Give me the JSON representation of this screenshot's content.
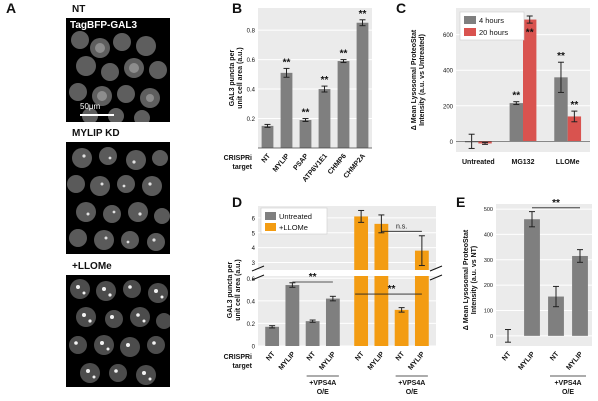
{
  "panel_labels": {
    "a": "A",
    "b": "B",
    "c": "C",
    "d": "D",
    "e": "E"
  },
  "panel_a": {
    "images": [
      {
        "label": "NT",
        "caption": "TagBFP-GAL3",
        "scale_bar": "50μm"
      },
      {
        "label": "MYLIP KD"
      },
      {
        "label": "+LLOMe"
      }
    ]
  },
  "colors": {
    "gray": "#7f7f7f",
    "red": "#d9534f",
    "orange": "#f39c12",
    "panel_bg": "#ebebeb"
  },
  "chart_data": [
    {
      "id": "B",
      "type": "bar",
      "ylabel": "GAL3 puncta per unit cell area (a.u.)",
      "row_label": "CRISPRi target",
      "categories": [
        "NT",
        "MYLIP",
        "PSAP",
        "ATP6V1E1",
        "CHMP6",
        "CHMP2A"
      ],
      "values": [
        0.15,
        0.51,
        0.19,
        0.4,
        0.59,
        0.85
      ],
      "errors": [
        0.01,
        0.03,
        0.01,
        0.02,
        0.01,
        0.02
      ],
      "sig": [
        "",
        "**",
        "**",
        "**",
        "**",
        "**"
      ],
      "yticks": [
        "0.2",
        "0.4",
        "0.6",
        "0.8"
      ],
      "ylim": [
        0,
        0.95
      ],
      "grid": true
    },
    {
      "id": "C",
      "type": "bar",
      "ylabel": "Δ Mean Lysosomal ProteoStat Intensity (a.u. vs Untreated)",
      "categories": [
        "Untreated",
        "MG132",
        "LLOMe"
      ],
      "series": [
        {
          "name": "4 hours",
          "values": [
            0,
            215,
            360
          ],
          "errors": [
            40,
            8,
            85
          ],
          "sig": [
            "",
            "**",
            "**"
          ]
        },
        {
          "name": "20 hours",
          "values": [
            -12,
            685,
            140
          ],
          "errors": [
            5,
            20,
            30
          ],
          "sig": [
            "",
            "**",
            "**"
          ]
        }
      ],
      "yticks": [
        "0",
        "200",
        "400",
        "600"
      ],
      "ylim": [
        -60,
        750
      ],
      "legend": "top-left",
      "grid": true
    },
    {
      "id": "D",
      "type": "bar",
      "ylabel": "GAL3 puncta per unit cell area (a.u.)",
      "row_label": "CRISPRi target",
      "categories": [
        "NT",
        "MYLIP",
        "NT",
        "MYLIP"
      ],
      "group_label": "+VPS4A O/E",
      "series": [
        {
          "name": "Untreated",
          "values": [
            0.17,
            0.54,
            0.22,
            0.42
          ],
          "errors": [
            0.01,
            0.02,
            0.01,
            0.02
          ]
        },
        {
          "name": "+LLOMe",
          "values": [
            6.1,
            5.6,
            0.32,
            3.8
          ],
          "errors": [
            0.4,
            0.6,
            0.02,
            1.0
          ]
        }
      ],
      "sig_labels": [
        "**",
        "**",
        "n.s."
      ],
      "yticks_low": [
        "0",
        "0.2",
        "0.4",
        "0.6"
      ],
      "yticks_high": [
        "3",
        "4",
        "5",
        "6"
      ],
      "legend": "top-left",
      "grid": true
    },
    {
      "id": "E",
      "type": "bar",
      "ylabel": "Δ Mean Lysosomal ProteoStat Intensity (a.u. vs NT)",
      "categories": [
        "NT",
        "MYLIP",
        "NT",
        "MYLIP"
      ],
      "group_label": "+VPS4A O/E",
      "values": [
        0,
        460,
        155,
        315
      ],
      "errors": [
        25,
        30,
        40,
        25
      ],
      "sig_label": "**",
      "yticks": [
        "0",
        "100",
        "200",
        "300",
        "400",
        "500"
      ],
      "ylim": [
        -40,
        520
      ],
      "grid": true
    }
  ]
}
